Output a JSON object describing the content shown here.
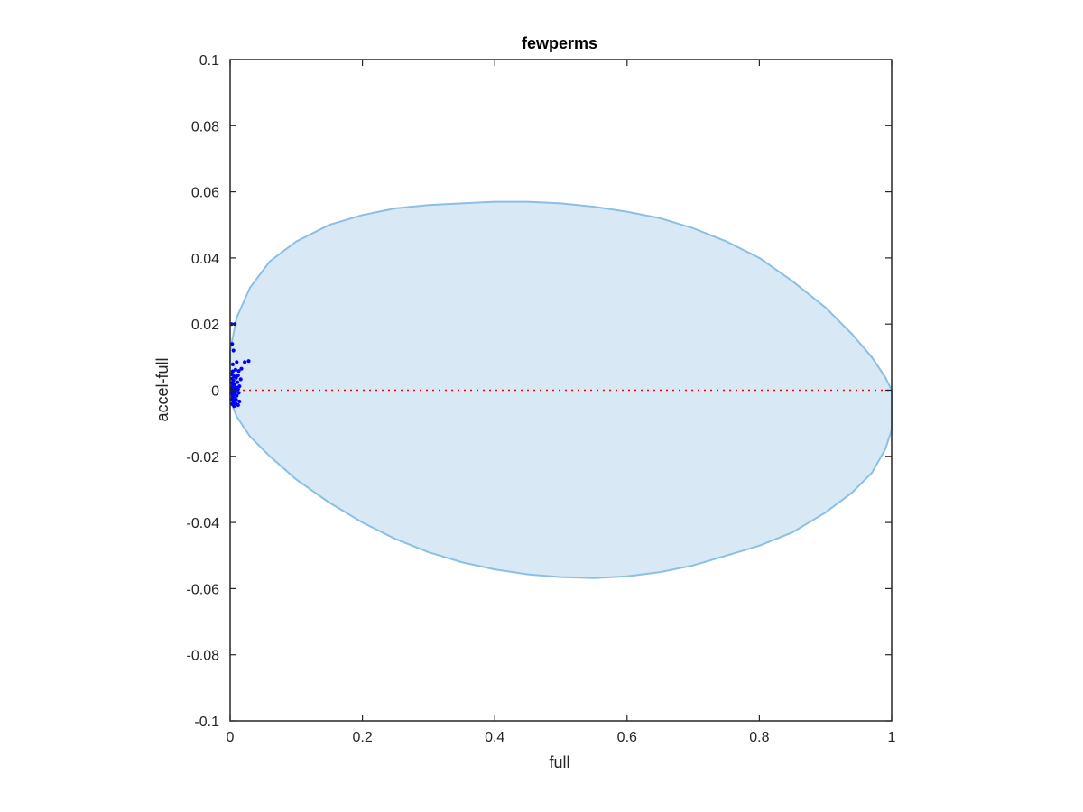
{
  "chart_data": {
    "type": "scatter",
    "title": "fewperms",
    "xlabel": "full",
    "ylabel": "accel-full",
    "xlim": [
      0,
      1
    ],
    "ylim": [
      -0.1,
      0.1
    ],
    "x_ticks": [
      0,
      0.2,
      0.4,
      0.6,
      0.8,
      1
    ],
    "x_tick_labels": [
      "0",
      "0.2",
      "0.4",
      "0.6",
      "0.8",
      "1"
    ],
    "y_ticks": [
      -0.1,
      -0.08,
      -0.06,
      -0.04,
      -0.02,
      0,
      0.02,
      0.04,
      0.06,
      0.08,
      0.1
    ],
    "y_tick_labels": [
      "-0.1",
      "-0.08",
      "-0.06",
      "-0.04",
      "-0.02",
      "0",
      "0.02",
      "0.04",
      "0.06",
      "0.08",
      "0.1"
    ],
    "grid": false,
    "colors": {
      "points": "#0000ff",
      "region_fill": "#d9e8f5",
      "region_edge": "#8bbfe3",
      "reference_line": "#ff0000",
      "axes": "#262626"
    },
    "reference_line": {
      "y": 0,
      "x_range": [
        0,
        1
      ],
      "style": "dotted"
    },
    "shaded_region": {
      "points": [
        [
          0.0,
          0.012
        ],
        [
          0.01,
          0.022
        ],
        [
          0.03,
          0.031
        ],
        [
          0.06,
          0.039
        ],
        [
          0.1,
          0.045
        ],
        [
          0.15,
          0.05
        ],
        [
          0.2,
          0.053
        ],
        [
          0.25,
          0.055
        ],
        [
          0.3,
          0.056
        ],
        [
          0.35,
          0.0565
        ],
        [
          0.4,
          0.057
        ],
        [
          0.45,
          0.057
        ],
        [
          0.5,
          0.0565
        ],
        [
          0.55,
          0.0555
        ],
        [
          0.6,
          0.054
        ],
        [
          0.65,
          0.052
        ],
        [
          0.7,
          0.049
        ],
        [
          0.75,
          0.045
        ],
        [
          0.8,
          0.04
        ],
        [
          0.85,
          0.033
        ],
        [
          0.9,
          0.025
        ],
        [
          0.94,
          0.017
        ],
        [
          0.97,
          0.01
        ],
        [
          0.99,
          0.004
        ],
        [
          1.0,
          0.0
        ],
        [
          1.0,
          -0.012
        ],
        [
          0.99,
          -0.018
        ],
        [
          0.97,
          -0.025
        ],
        [
          0.94,
          -0.031
        ],
        [
          0.9,
          -0.037
        ],
        [
          0.85,
          -0.043
        ],
        [
          0.8,
          -0.047
        ],
        [
          0.75,
          -0.05
        ],
        [
          0.7,
          -0.053
        ],
        [
          0.65,
          -0.055
        ],
        [
          0.6,
          -0.0563
        ],
        [
          0.55,
          -0.0568
        ],
        [
          0.5,
          -0.0565
        ],
        [
          0.45,
          -0.0557
        ],
        [
          0.4,
          -0.0542
        ],
        [
          0.35,
          -0.052
        ],
        [
          0.3,
          -0.049
        ],
        [
          0.25,
          -0.045
        ],
        [
          0.2,
          -0.04
        ],
        [
          0.15,
          -0.034
        ],
        [
          0.1,
          -0.027
        ],
        [
          0.06,
          -0.02
        ],
        [
          0.03,
          -0.014
        ],
        [
          0.01,
          -0.008
        ],
        [
          0.0,
          -0.003
        ]
      ]
    },
    "series": [
      {
        "points": [
          [
            0.002,
            0.02
          ],
          [
            0.007,
            0.02
          ],
          [
            0.003,
            0.014
          ],
          [
            0.005,
            0.012
          ],
          [
            0.028,
            0.0088
          ],
          [
            0.022,
            0.0085
          ],
          [
            0.017,
            0.0065
          ],
          [
            0.01,
            0.0085
          ],
          [
            0.004,
            0.0078
          ],
          [
            0.008,
            0.0062
          ],
          [
            0.013,
            0.0058
          ],
          [
            0.004,
            0.0057
          ],
          [
            0.012,
            0.0045
          ],
          [
            0.002,
            0.0048
          ],
          [
            0.006,
            0.0042
          ],
          [
            0.016,
            0.0033
          ],
          [
            0.009,
            0.0038
          ],
          [
            0.003,
            0.0035
          ],
          [
            0.005,
            0.0029
          ],
          [
            0.011,
            0.0024
          ],
          [
            0.002,
            0.0022
          ],
          [
            0.007,
            0.0018
          ],
          [
            0.014,
            0.0012
          ],
          [
            0.004,
            0.0013
          ],
          [
            0.009,
            0.0008
          ],
          [
            0.002,
            0.0006
          ],
          [
            0.006,
            0.0004
          ],
          [
            0.012,
            0.0003
          ],
          [
            0.003,
            -0.0002
          ],
          [
            0.008,
            -0.0004
          ],
          [
            0.013,
            -0.0008
          ],
          [
            0.005,
            -0.0007
          ],
          [
            0.002,
            -0.001
          ],
          [
            0.007,
            -0.0012
          ],
          [
            0.01,
            -0.0017
          ],
          [
            0.004,
            -0.0019
          ],
          [
            0.006,
            -0.0024
          ],
          [
            0.002,
            -0.0028
          ],
          [
            0.009,
            -0.0029
          ],
          [
            0.014,
            -0.0034
          ],
          [
            0.005,
            -0.0034
          ],
          [
            0.008,
            -0.0039
          ],
          [
            0.012,
            -0.0045
          ],
          [
            0.003,
            -0.0042
          ],
          [
            0.006,
            -0.0048
          ]
        ]
      }
    ]
  }
}
